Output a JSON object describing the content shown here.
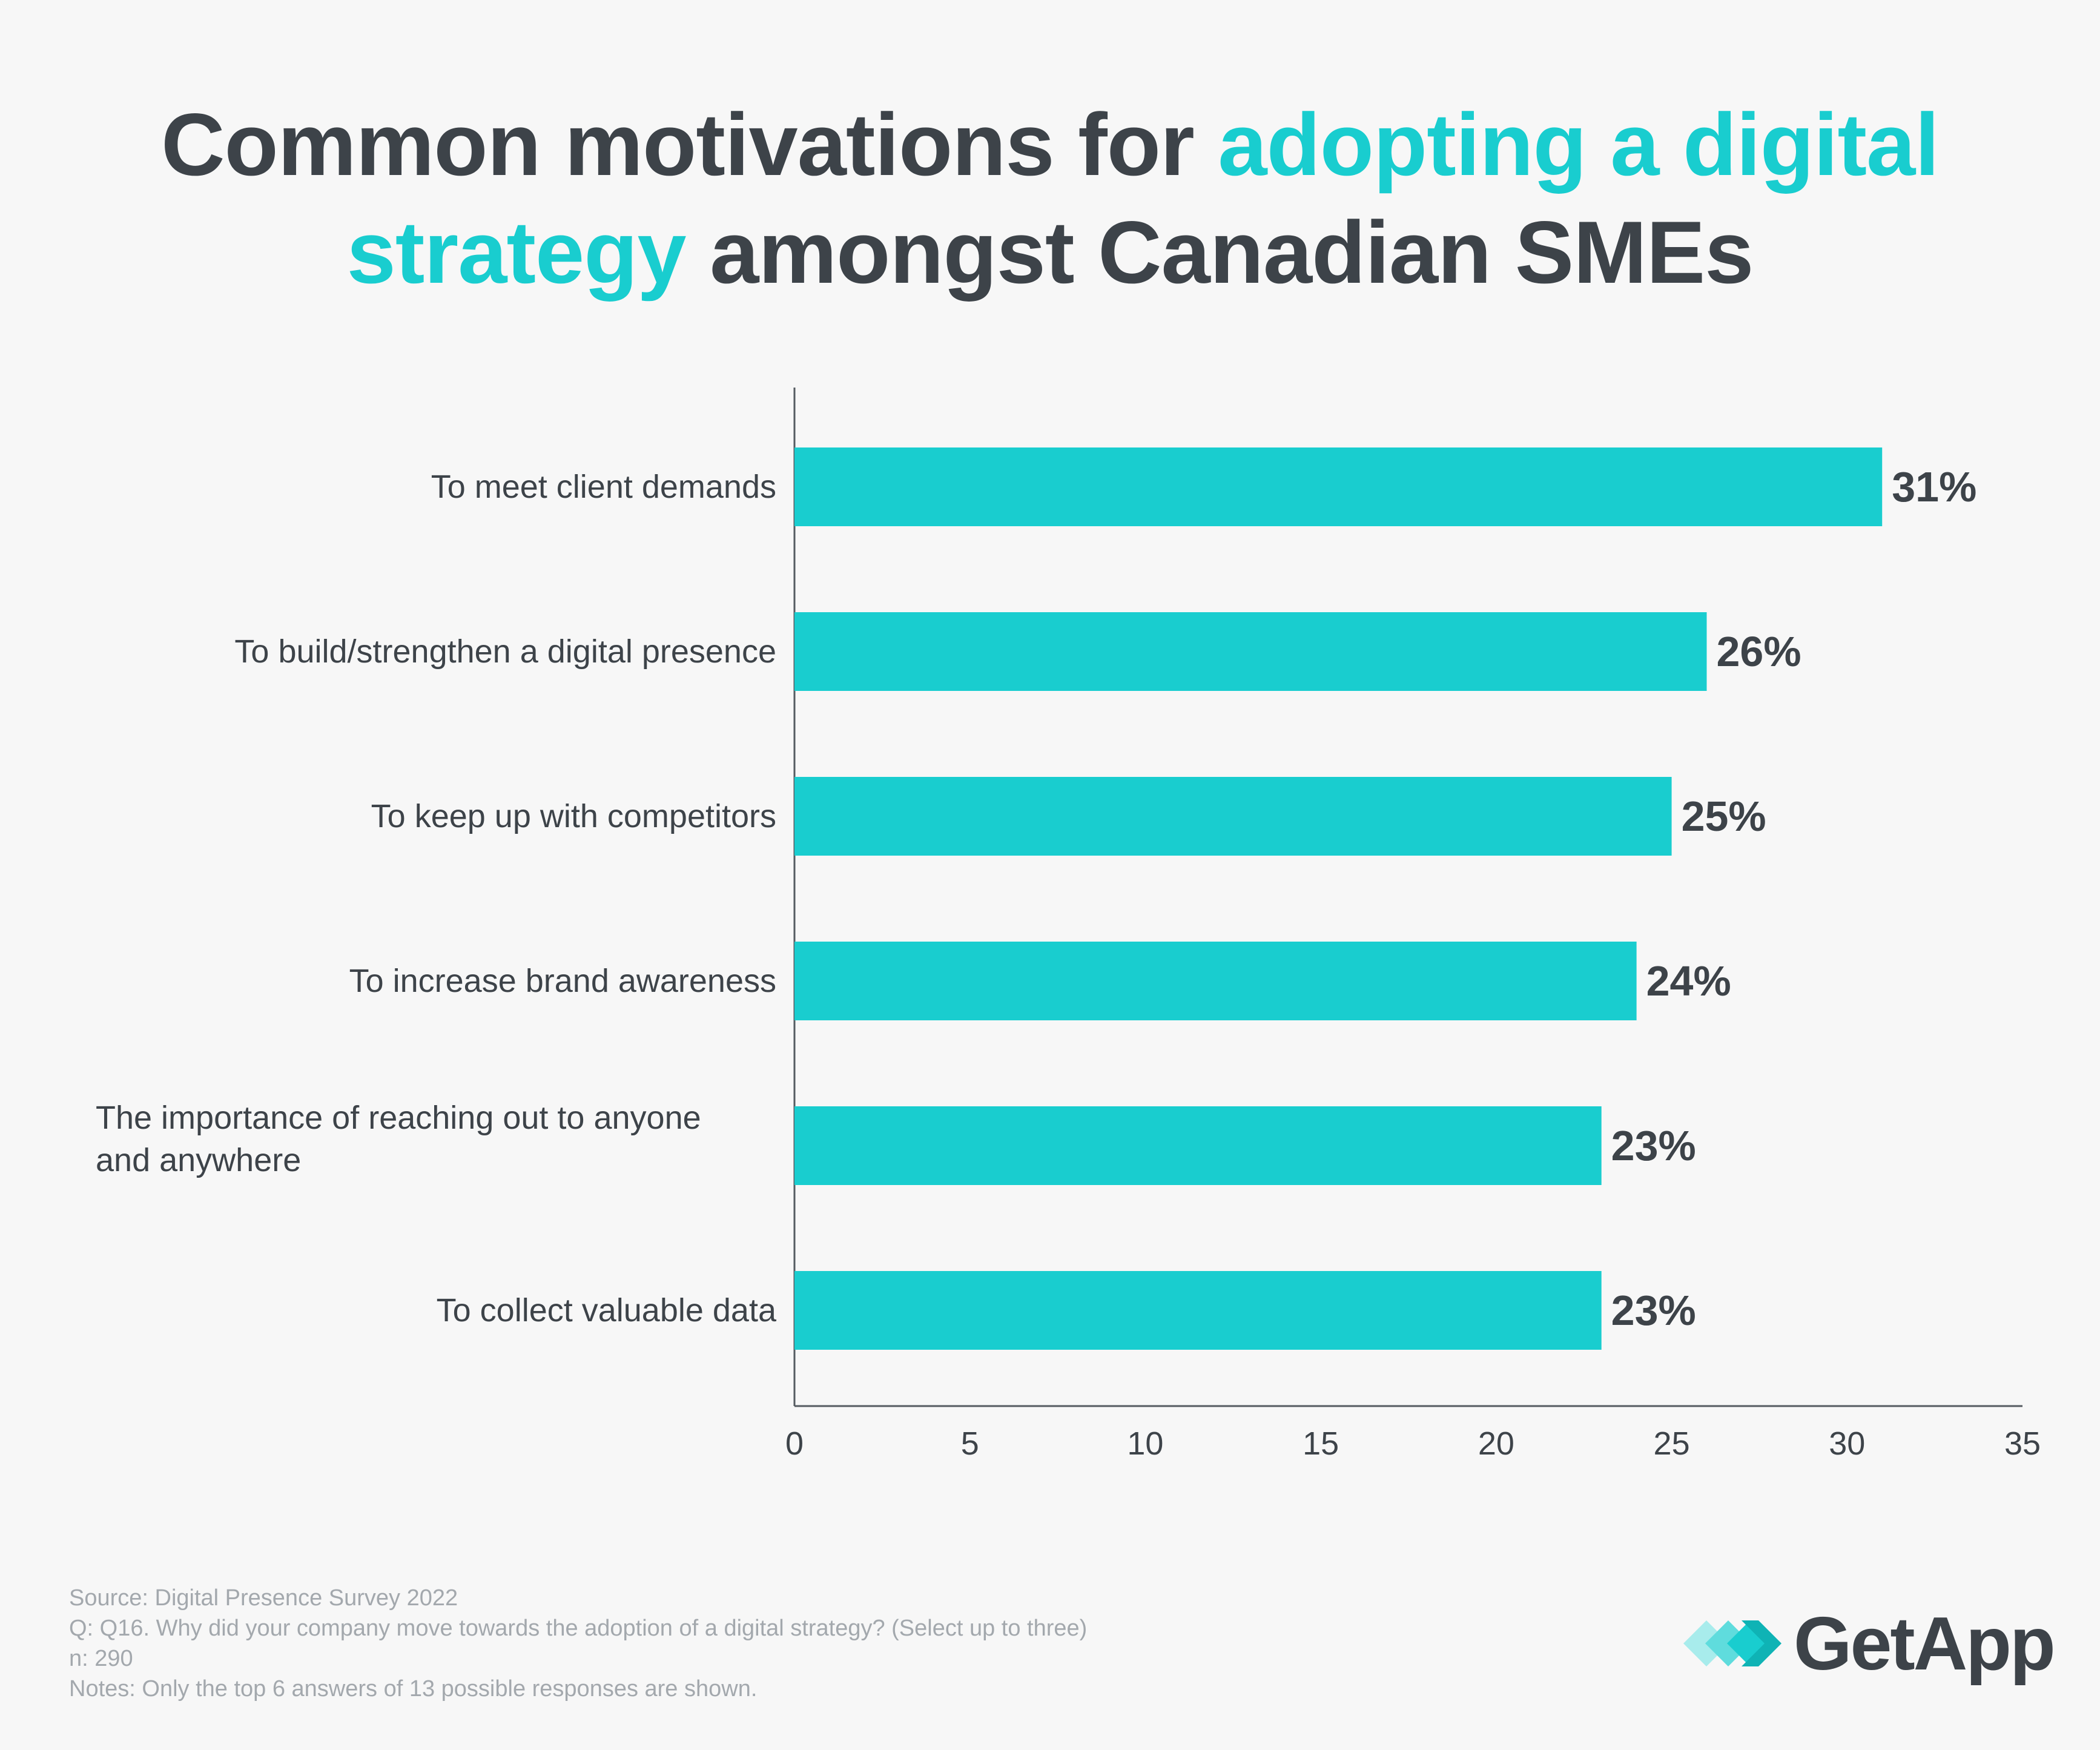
{
  "title": {
    "part1": "Common motivations for ",
    "highlight1": "adopting a digital",
    "highlight2": "strategy",
    "part2": " amongst Canadian SMEs"
  },
  "colors": {
    "accent": "#19cdcf",
    "text": "#3d4349",
    "muted": "#a3a8ad",
    "background": "#f7f7f7"
  },
  "chart_data": {
    "type": "bar",
    "orientation": "horizontal",
    "categories": [
      [
        "To meet client demands"
      ],
      [
        "To build/strengthen a digital presence"
      ],
      [
        "To keep up with competitors"
      ],
      [
        "To increase brand awareness"
      ],
      [
        "The importance of reaching out to anyone",
        "and anywhere"
      ],
      [
        "To collect valuable data"
      ]
    ],
    "values": [
      31,
      26,
      25,
      24,
      23,
      23
    ],
    "value_labels": [
      "31%",
      "26%",
      "25%",
      "24%",
      "23%",
      "23%"
    ],
    "xlim": [
      0,
      35
    ],
    "xticks": [
      "0",
      "5",
      "10",
      "15",
      "20",
      "25",
      "30",
      "35"
    ],
    "xlabel": "",
    "ylabel": "",
    "grid": false,
    "legend": "none"
  },
  "footer": {
    "source": "Source: Digital Presence Survey 2022",
    "question": "Q: Q16. Why did your company move towards the adoption of a digital strategy? (Select up to three)",
    "n": "n: 290",
    "notes": "Notes: Only the top 6 answers of 13 possible responses are shown."
  },
  "logo": {
    "text": "GetApp",
    "icon": "getapp-chevrons-icon"
  }
}
